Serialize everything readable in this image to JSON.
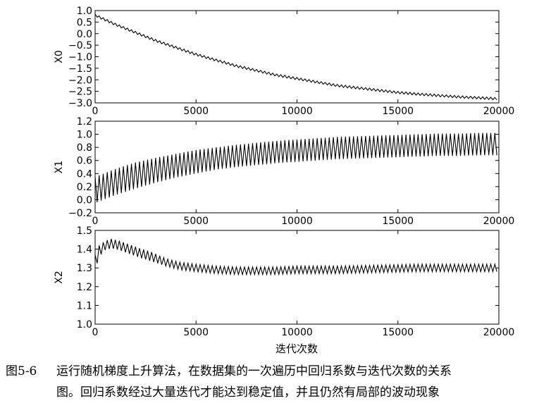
{
  "figure": {
    "xlabel": "迭代次数",
    "caption_number": "图5-6",
    "caption_line1": "运行随机梯度上升算法，在数据集的一次遍历中回归系数与迭代次数的关系",
    "caption_line2": "图。回归系数经过大量迭代才能达到稳定值，并且仍然有局部的波动现象"
  },
  "chart_data": [
    {
      "type": "line",
      "ylabel": "X0",
      "xlim": [
        0,
        20000
      ],
      "ylim": [
        -3.0,
        1.0
      ],
      "xticks": [
        0,
        5000,
        10000,
        15000,
        20000
      ],
      "xtick_labels": [
        "0",
        "5000",
        "10000",
        "15000",
        "20000"
      ],
      "yticks": [
        -3.0,
        -2.5,
        -2.0,
        -1.5,
        -1.0,
        -0.5,
        0.0,
        0.5,
        1.0
      ],
      "ytick_labels": [
        "−3.0",
        "−2.5",
        "−2.0",
        "−1.5",
        "−1.0",
        "−0.5",
        "0.0",
        "0.5",
        "1.0"
      ],
      "x": [
        0,
        1000,
        2000,
        3000,
        4000,
        5000,
        6000,
        7000,
        8000,
        9000,
        10000,
        11000,
        12000,
        13000,
        14000,
        15000,
        16000,
        17000,
        18000,
        19000,
        19900
      ],
      "center": [
        0.8,
        0.4,
        0.05,
        -0.3,
        -0.6,
        -0.9,
        -1.15,
        -1.4,
        -1.6,
        -1.8,
        -1.95,
        -2.1,
        -2.25,
        -2.35,
        -2.45,
        -2.55,
        -2.62,
        -2.68,
        -2.74,
        -2.78,
        -2.82
      ],
      "amplitude": [
        0.05,
        0.05,
        0.05,
        0.05,
        0.05,
        0.05,
        0.05,
        0.05,
        0.05,
        0.05,
        0.05,
        0.05,
        0.05,
        0.05,
        0.05,
        0.05,
        0.05,
        0.05,
        0.05,
        0.05,
        0.05
      ]
    },
    {
      "type": "line",
      "ylabel": "X1",
      "xlim": [
        0,
        20000
      ],
      "ylim": [
        -0.2,
        1.2
      ],
      "xticks": [
        0,
        5000,
        10000,
        15000,
        20000
      ],
      "xtick_labels": [
        "0",
        "5000",
        "10000",
        "15000",
        "20000"
      ],
      "yticks": [
        -0.2,
        0.0,
        0.2,
        0.4,
        0.6,
        0.8,
        1.0,
        1.2
      ],
      "ytick_labels": [
        "−0.2",
        "0.0",
        "0.2",
        "0.4",
        "0.6",
        "0.8",
        "1.0",
        "1.2"
      ],
      "x": [
        0,
        1000,
        2000,
        3000,
        4000,
        5000,
        6000,
        7000,
        8000,
        9000,
        10000,
        11000,
        12000,
        13000,
        14000,
        15000,
        16000,
        17000,
        18000,
        19000,
        19900
      ],
      "center": [
        0.15,
        0.27,
        0.37,
        0.45,
        0.52,
        0.58,
        0.63,
        0.67,
        0.7,
        0.73,
        0.75,
        0.77,
        0.79,
        0.8,
        0.81,
        0.82,
        0.83,
        0.84,
        0.84,
        0.85,
        0.85
      ],
      "amplitude": [
        0.2,
        0.2,
        0.2,
        0.19,
        0.18,
        0.18,
        0.17,
        0.17,
        0.17,
        0.17,
        0.17,
        0.17,
        0.17,
        0.17,
        0.17,
        0.17,
        0.17,
        0.17,
        0.17,
        0.17,
        0.17
      ]
    },
    {
      "type": "line",
      "ylabel": "X2",
      "xlim": [
        0,
        20000
      ],
      "ylim": [
        1.0,
        1.5
      ],
      "xticks": [
        0,
        5000,
        10000,
        15000,
        20000
      ],
      "xtick_labels": [
        "0",
        "5000",
        "10000",
        "15000",
        "20000"
      ],
      "yticks": [
        1.0,
        1.1,
        1.2,
        1.3,
        1.4,
        1.5
      ],
      "ytick_labels": [
        "1.0",
        "1.1",
        "1.2",
        "1.3",
        "1.4",
        "1.5"
      ],
      "x": [
        0,
        200,
        500,
        800,
        1200,
        1700,
        2200,
        2800,
        3500,
        4200,
        5000,
        6000,
        7000,
        8000,
        9000,
        10000,
        12000,
        14000,
        16000,
        18000,
        19900
      ],
      "center": [
        1.33,
        1.39,
        1.42,
        1.43,
        1.42,
        1.4,
        1.38,
        1.36,
        1.33,
        1.31,
        1.3,
        1.29,
        1.285,
        1.285,
        1.285,
        1.29,
        1.29,
        1.295,
        1.3,
        1.3,
        1.3
      ],
      "amplitude": [
        0.04,
        0.03,
        0.025,
        0.025,
        0.025,
        0.025,
        0.025,
        0.025,
        0.02,
        0.02,
        0.02,
        0.02,
        0.02,
        0.02,
        0.02,
        0.02,
        0.02,
        0.02,
        0.02,
        0.02,
        0.02
      ]
    }
  ]
}
